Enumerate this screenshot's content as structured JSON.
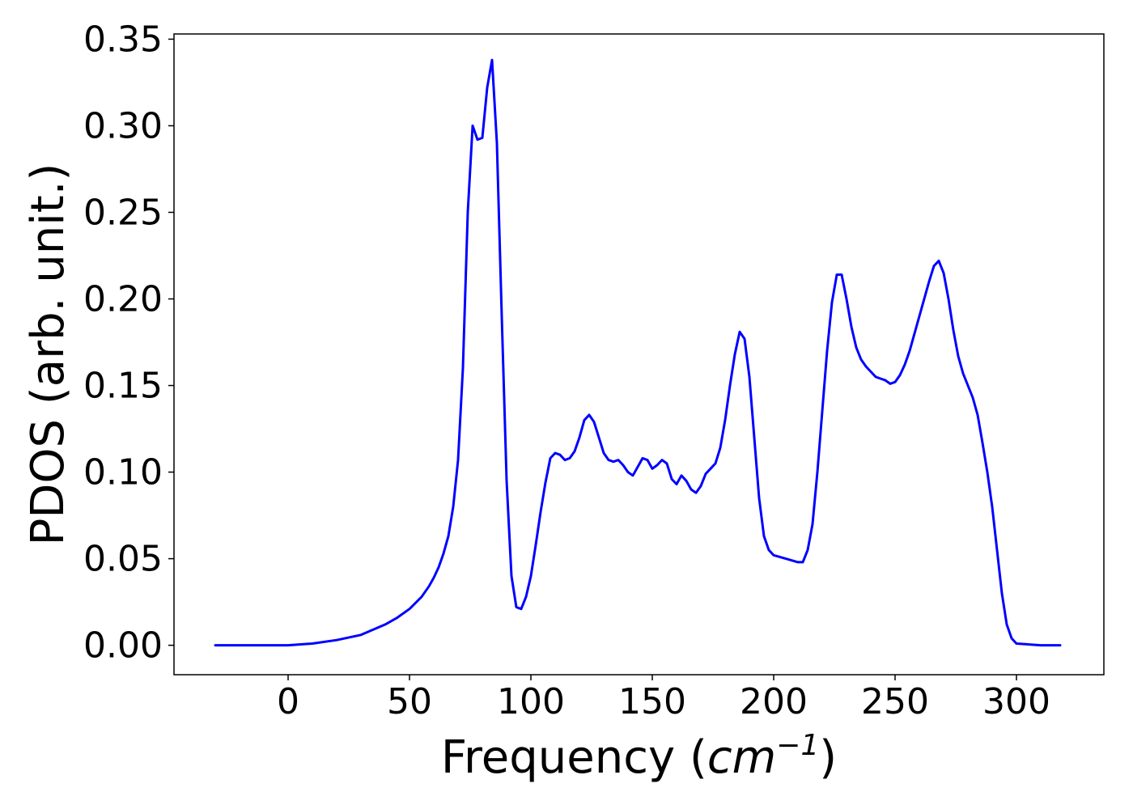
{
  "chart_data": {
    "type": "line",
    "title": "",
    "xlabel": "Frequency (",
    "xlabel_math": "cm",
    "xlabel_sup": "−1",
    "xlabel_close": ")",
    "ylabel": "PDOS (arb. unit.)",
    "xlim": [
      -47,
      336
    ],
    "ylim": [
      -0.017,
      0.353
    ],
    "xticks": [
      0,
      50,
      100,
      150,
      200,
      250,
      300
    ],
    "yticks": [
      0.0,
      0.05,
      0.1,
      0.15,
      0.2,
      0.25,
      0.3,
      0.35
    ],
    "xtick_labels": [
      "0",
      "50",
      "100",
      "150",
      "200",
      "250",
      "300"
    ],
    "ytick_labels": [
      "0.00",
      "0.05",
      "0.10",
      "0.15",
      "0.20",
      "0.25",
      "0.30",
      "0.35"
    ],
    "grid": false,
    "line_color": "#0000ff",
    "series": [
      {
        "x": [
          -30,
          0,
          10,
          20,
          30,
          40,
          45,
          50,
          55,
          58,
          60,
          62,
          64,
          66,
          68,
          70,
          72,
          74,
          76,
          78,
          80,
          82,
          84,
          86,
          88,
          90,
          92,
          94,
          96,
          98,
          100,
          102,
          104,
          106,
          108,
          110,
          112,
          114,
          116,
          118,
          120,
          122,
          124,
          126,
          128,
          130,
          132,
          134,
          136,
          138,
          140,
          142,
          144,
          146,
          148,
          150,
          152,
          154,
          156,
          158,
          160,
          162,
          164,
          166,
          168,
          170,
          172,
          174,
          176,
          178,
          180,
          182,
          184,
          186,
          188,
          190,
          192,
          194,
          196,
          198,
          200,
          205,
          210,
          212,
          214,
          216,
          218,
          220,
          222,
          224,
          226,
          228,
          230,
          232,
          234,
          236,
          238,
          240,
          242,
          244,
          246,
          248,
          250,
          252,
          254,
          256,
          258,
          260,
          262,
          264,
          266,
          268,
          270,
          272,
          274,
          276,
          278,
          280,
          282,
          284,
          286,
          288,
          290,
          292,
          294,
          296,
          298,
          300,
          310,
          318
        ],
        "y": [
          0.0,
          0.0,
          0.001,
          0.003,
          0.006,
          0.012,
          0.016,
          0.021,
          0.028,
          0.034,
          0.039,
          0.045,
          0.053,
          0.063,
          0.08,
          0.107,
          0.16,
          0.25,
          0.3,
          0.292,
          0.293,
          0.322,
          0.338,
          0.29,
          0.19,
          0.095,
          0.04,
          0.022,
          0.021,
          0.028,
          0.04,
          0.058,
          0.077,
          0.094,
          0.108,
          0.111,
          0.11,
          0.107,
          0.108,
          0.112,
          0.12,
          0.13,
          0.133,
          0.129,
          0.12,
          0.111,
          0.107,
          0.106,
          0.107,
          0.104,
          0.1,
          0.098,
          0.103,
          0.108,
          0.107,
          0.102,
          0.104,
          0.107,
          0.105,
          0.096,
          0.093,
          0.098,
          0.095,
          0.09,
          0.088,
          0.092,
          0.099,
          0.102,
          0.105,
          0.114,
          0.13,
          0.15,
          0.168,
          0.181,
          0.177,
          0.155,
          0.12,
          0.085,
          0.063,
          0.055,
          0.052,
          0.05,
          0.048,
          0.048,
          0.055,
          0.07,
          0.1,
          0.135,
          0.17,
          0.198,
          0.214,
          0.214,
          0.2,
          0.184,
          0.172,
          0.165,
          0.161,
          0.158,
          0.155,
          0.154,
          0.153,
          0.151,
          0.152,
          0.156,
          0.162,
          0.17,
          0.18,
          0.19,
          0.2,
          0.21,
          0.219,
          0.222,
          0.215,
          0.2,
          0.182,
          0.167,
          0.157,
          0.15,
          0.143,
          0.133,
          0.117,
          0.1,
          0.08,
          0.055,
          0.03,
          0.012,
          0.004,
          0.001,
          0.0,
          0.0
        ]
      }
    ]
  }
}
